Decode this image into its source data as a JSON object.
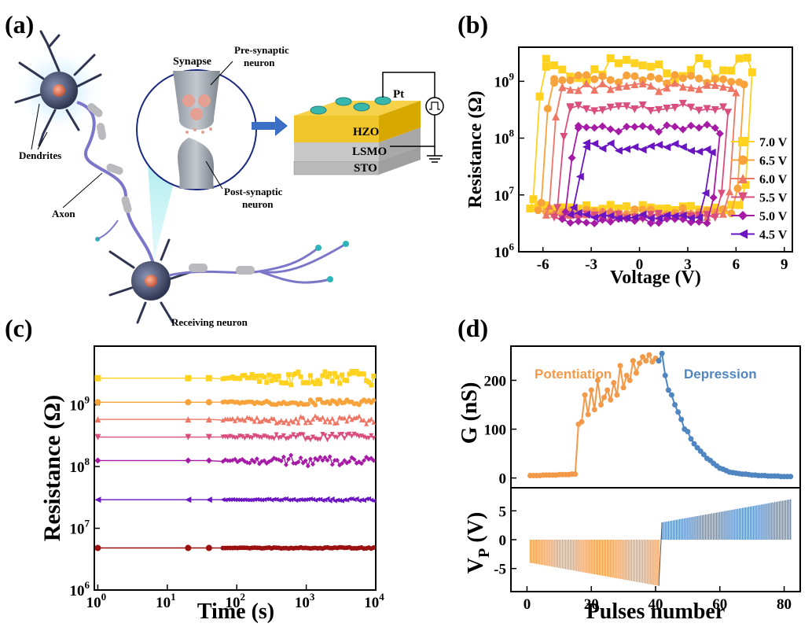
{
  "panel_labels": {
    "a": "(a)",
    "b": "(b)",
    "c": "(c)",
    "d": "(d)"
  },
  "schematic": {
    "synapse_title": "Synapse",
    "pre_synaptic": [
      "Pre-synaptic",
      "neuron"
    ],
    "post_synaptic": [
      "Post-synaptic",
      "neuron"
    ],
    "dendrites": "Dendrites",
    "axon": "Axon",
    "receiving_neuron": "Receiving neuron",
    "layers": [
      "HZO",
      "LSMO",
      "STO"
    ],
    "electrode": "Pt"
  },
  "colors": {
    "s70": "#FFD21F",
    "s65": "#F7A23A",
    "s60": "#EE7665",
    "s55": "#D94E7E",
    "s50": "#A61BA6",
    "s45": "#6A14C2",
    "dark_red": "#9B1010",
    "potentiation": "#F2994A",
    "depression": "#4F86C2"
  },
  "chart_data": [
    {
      "panel": "b",
      "type": "line",
      "xlabel": "Voltage (V)",
      "ylabel": "Resistance (Ω)",
      "xlim": [
        -7.5,
        9.5
      ],
      "ylim_log10": [
        6,
        9.6
      ],
      "y_scale": "log",
      "xticks": [
        "-6",
        "-3",
        "0",
        "3",
        "6",
        "9"
      ],
      "yticks": [
        "10",
        "10",
        "10",
        "10"
      ],
      "ytick_exponents": [
        "6",
        "7",
        "8",
        "9"
      ],
      "legend_position": "right",
      "series": [
        {
          "name": "7.0 V",
          "vmax": 7.0,
          "high": 1800000000.0,
          "low": 6000000.0,
          "marker": "square",
          "color_key": "s70"
        },
        {
          "name": "6.5 V",
          "vmax": 6.5,
          "high": 1100000000.0,
          "low": 5200000.0,
          "marker": "circle",
          "color_key": "s65"
        },
        {
          "name": "6.0 V",
          "vmax": 6.0,
          "high": 800000000.0,
          "low": 4600000.0,
          "marker": "triangle-up",
          "color_key": "s60"
        },
        {
          "name": "5.5 V",
          "vmax": 5.5,
          "high": 350000000.0,
          "low": 4200000.0,
          "marker": "triangle-down",
          "color_key": "s55"
        },
        {
          "name": "5.0 V",
          "vmax": 5.0,
          "high": 150000000.0,
          "low": 3600000.0,
          "marker": "diamond",
          "color_key": "s50"
        },
        {
          "name": "4.5 V",
          "vmax": 4.5,
          "high": 70000000.0,
          "low": 4300000.0,
          "marker": "triangle-left",
          "color_key": "s45"
        }
      ]
    },
    {
      "panel": "c",
      "type": "line",
      "xlabel": "Time (s)",
      "ylabel": "Resistance (Ω)",
      "x_scale": "log",
      "y_scale": "log",
      "xlim_log10": [
        -0.05,
        4.0
      ],
      "ylim_log10": [
        6,
        9.95
      ],
      "xticks": [
        "10",
        "10",
        "10",
        "10",
        "10"
      ],
      "xtick_exponents": [
        "0",
        "1",
        "2",
        "3",
        "4"
      ],
      "yticks": [
        "10",
        "10",
        "10",
        "10"
      ],
      "ytick_exponents": [
        "6",
        "7",
        "8",
        "9"
      ],
      "series": [
        {
          "level": 2700000000.0,
          "noise": 0.12,
          "marker": "square",
          "color_key": "s70"
        },
        {
          "level": 1100000000.0,
          "noise": 0.05,
          "marker": "circle",
          "color_key": "s65"
        },
        {
          "level": 580000000.0,
          "noise": 0.08,
          "marker": "triangle-up",
          "color_key": "s60"
        },
        {
          "level": 300000000.0,
          "noise": 0.05,
          "marker": "triangle-down",
          "color_key": "s55"
        },
        {
          "level": 125000000.0,
          "noise": 0.09,
          "marker": "diamond",
          "color_key": "s50"
        },
        {
          "level": 29000000.0,
          "noise": 0.02,
          "marker": "triangle-left",
          "color_key": "s45"
        },
        {
          "level": 4800000.0,
          "noise": 0.01,
          "marker": "circle",
          "color_key": "dark_red"
        }
      ]
    },
    {
      "panel": "d-top",
      "type": "line",
      "ylabel": "G (nS)",
      "xlim": [
        -5,
        85
      ],
      "ylim": [
        -20,
        270
      ],
      "yticks": [
        0,
        100,
        200
      ],
      "annotations": [
        "Potentiation",
        "Depression"
      ],
      "potentiation_x": [
        1,
        2,
        3,
        4,
        5,
        6,
        7,
        8,
        9,
        10,
        11,
        12,
        13,
        14,
        15,
        16,
        17,
        18,
        19,
        20,
        21,
        22,
        23,
        24,
        25,
        26,
        27,
        28,
        29,
        30,
        31,
        32,
        33,
        34,
        35,
        36,
        37,
        38,
        39,
        40,
        41
      ],
      "potentiation_g": [
        5,
        5,
        5,
        5,
        6,
        6,
        6,
        6,
        6,
        7,
        7,
        7,
        7,
        8,
        8,
        110,
        115,
        170,
        130,
        180,
        140,
        200,
        150,
        165,
        180,
        160,
        195,
        170,
        230,
        185,
        210,
        200,
        240,
        215,
        235,
        248,
        240,
        252,
        238,
        245,
        240
      ],
      "depression_x": [
        42,
        43,
        44,
        45,
        46,
        47,
        48,
        49,
        50,
        51,
        52,
        53,
        54,
        55,
        56,
        57,
        58,
        59,
        60,
        61,
        62,
        63,
        64,
        65,
        66,
        67,
        68,
        69,
        70,
        71,
        72,
        73,
        74,
        75,
        76,
        77,
        78,
        79,
        80,
        81,
        82
      ],
      "depression_g": [
        255,
        210,
        180,
        170,
        150,
        135,
        120,
        100,
        95,
        80,
        70,
        62,
        55,
        48,
        40,
        36,
        30,
        25,
        20,
        18,
        15,
        12,
        11,
        10,
        9,
        8,
        8,
        7,
        6,
        6,
        5,
        5,
        5,
        4,
        4,
        4,
        4,
        3,
        3,
        3,
        3
      ]
    },
    {
      "panel": "d-bottom",
      "type": "bar",
      "xlabel": "Pulses number",
      "ylabel": "V",
      "ylabel_sub": "P",
      "ylabel_unit": "(V)",
      "xlim": [
        -5,
        85
      ],
      "ylim": [
        -9,
        9
      ],
      "xticks": [
        0,
        20,
        40,
        60,
        80
      ],
      "yticks": [
        -5,
        0,
        5
      ],
      "negative_pulses": {
        "from_pulse": 1,
        "to_pulse": 41,
        "v_start": -4.0,
        "v_end": -8.0
      },
      "positive_pulses": {
        "from_pulse": 42,
        "to_pulse": 82,
        "v_start": 3.0,
        "v_end": 7.0
      }
    }
  ]
}
